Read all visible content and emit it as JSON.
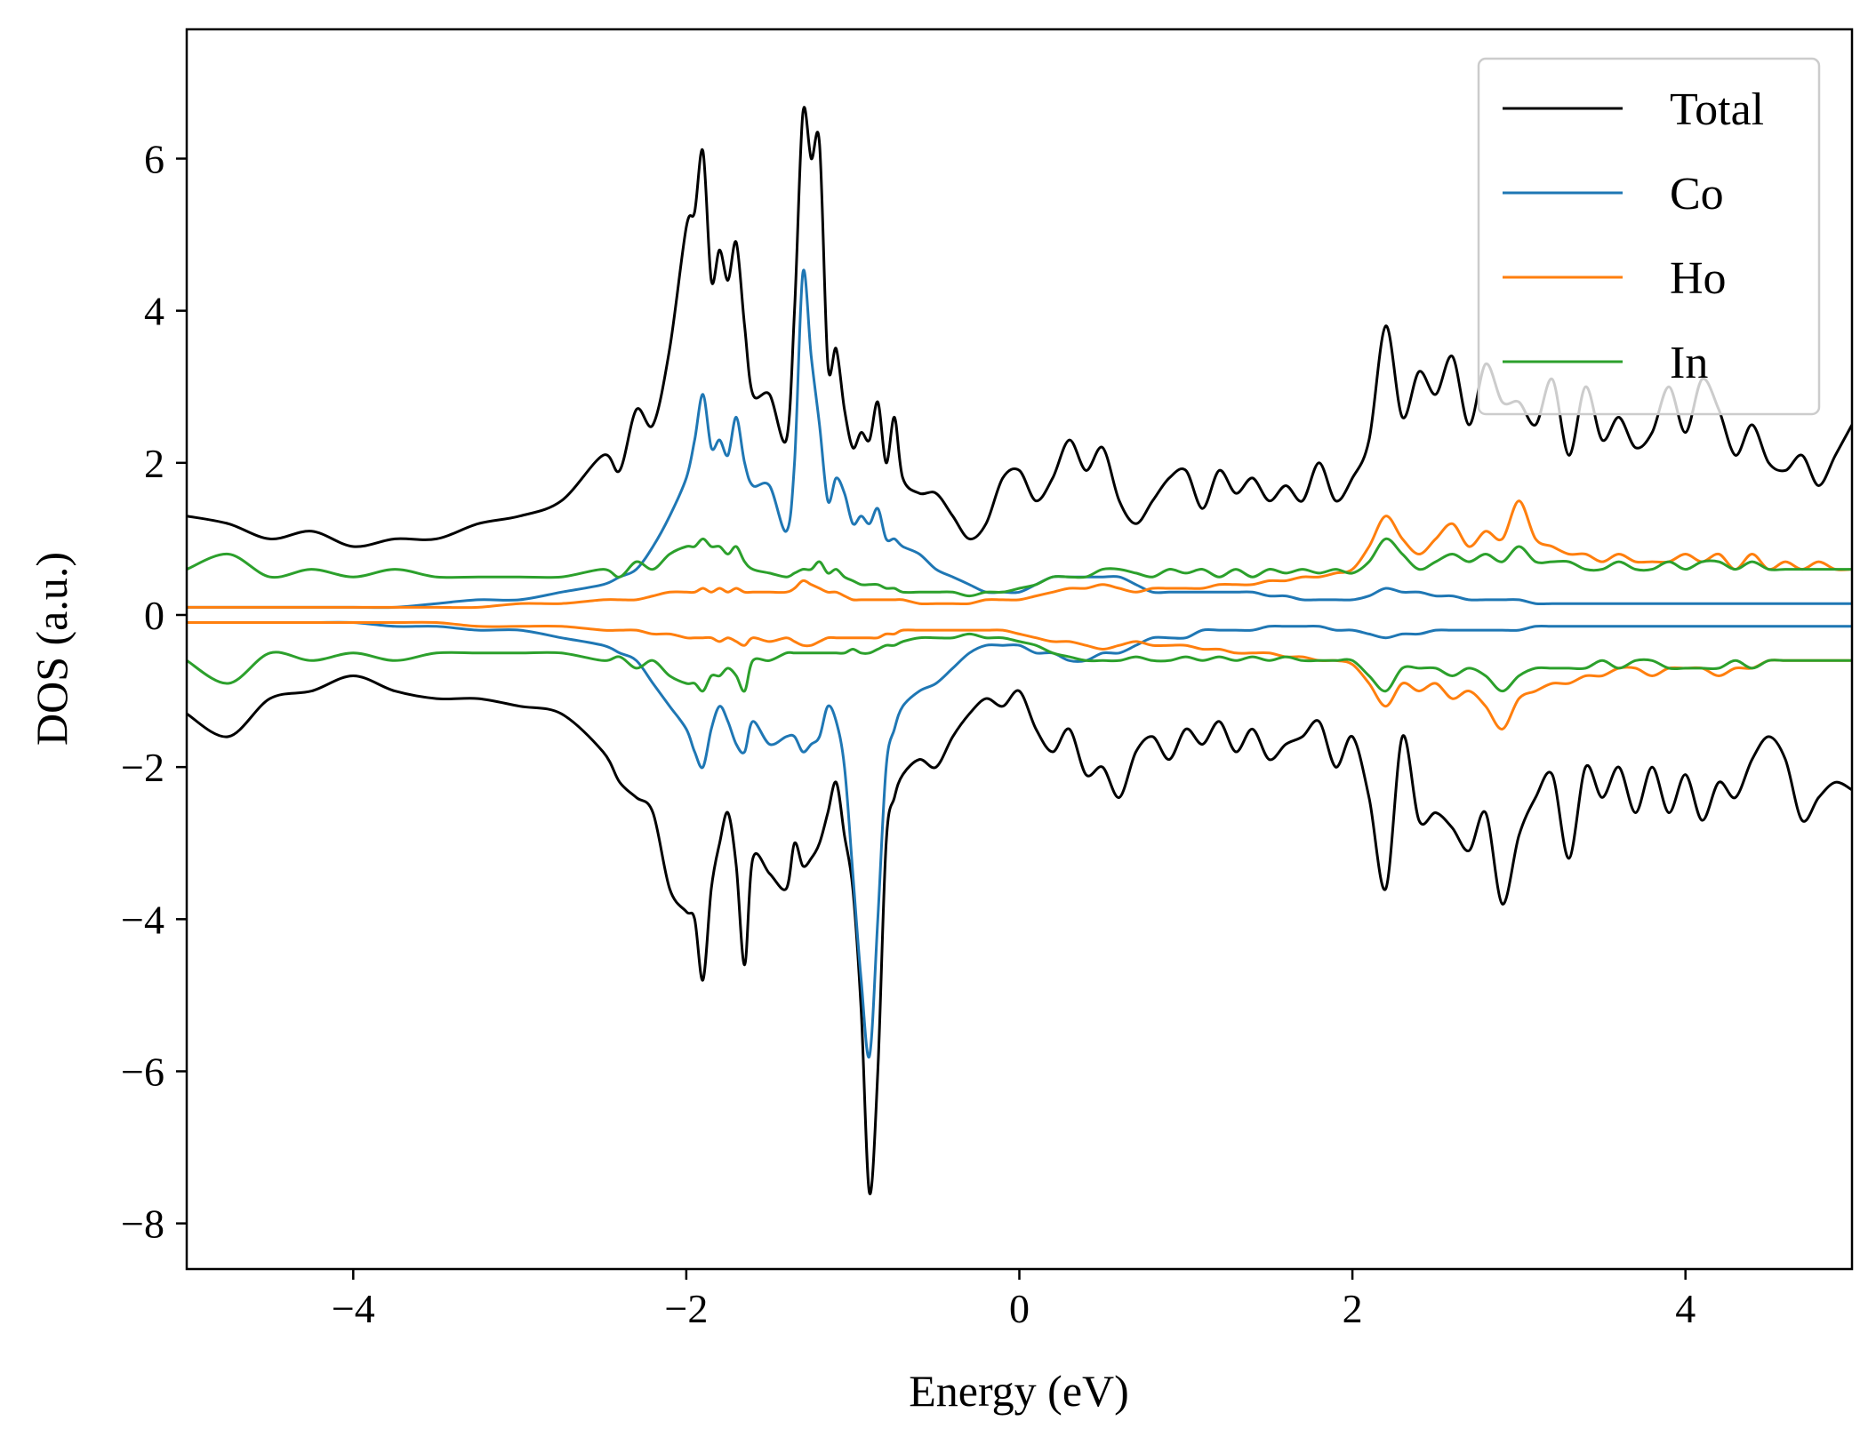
{
  "chart_data": {
    "type": "line",
    "title": "",
    "xlabel": "Energy (eV)",
    "ylabel": "DOS (a.u.)",
    "xlim": [
      -5,
      5
    ],
    "ylim": [
      -8.6,
      7.7
    ],
    "xticks": [
      {
        "value": -4,
        "label": "−4"
      },
      {
        "value": -2,
        "label": "−2"
      },
      {
        "value": 0,
        "label": "0"
      },
      {
        "value": 2,
        "label": "2"
      },
      {
        "value": 4,
        "label": "4"
      }
    ],
    "yticks": [
      {
        "value": -8,
        "label": "−8"
      },
      {
        "value": -6,
        "label": "−6"
      },
      {
        "value": -4,
        "label": "−4"
      },
      {
        "value": -2,
        "label": "−2"
      },
      {
        "value": 0,
        "label": "0"
      },
      {
        "value": 2,
        "label": "2"
      },
      {
        "value": 4,
        "label": "4"
      },
      {
        "value": 6,
        "label": "6"
      }
    ],
    "grid": false,
    "legend_position": "top-right",
    "x": [
      -5.0,
      -4.75,
      -4.5,
      -4.25,
      -4.0,
      -3.75,
      -3.5,
      -3.25,
      -3.0,
      -2.75,
      -2.5,
      -2.4,
      -2.3,
      -2.2,
      -2.1,
      -2.0,
      -1.95,
      -1.9,
      -1.85,
      -1.8,
      -1.75,
      -1.7,
      -1.65,
      -1.6,
      -1.5,
      -1.4,
      -1.35,
      -1.3,
      -1.25,
      -1.2,
      -1.15,
      -1.1,
      -1.05,
      -1.0,
      -0.95,
      -0.9,
      -0.85,
      -0.8,
      -0.75,
      -0.7,
      -0.6,
      -0.5,
      -0.4,
      -0.3,
      -0.2,
      -0.1,
      0.0,
      0.1,
      0.2,
      0.3,
      0.4,
      0.5,
      0.6,
      0.7,
      0.8,
      0.9,
      1.0,
      1.1,
      1.2,
      1.3,
      1.4,
      1.5,
      1.6,
      1.7,
      1.8,
      1.9,
      2.0,
      2.1,
      2.2,
      2.3,
      2.4,
      2.5,
      2.6,
      2.7,
      2.8,
      2.9,
      3.0,
      3.1,
      3.2,
      3.3,
      3.4,
      3.5,
      3.6,
      3.7,
      3.8,
      3.9,
      4.0,
      4.1,
      4.2,
      4.3,
      4.4,
      4.5,
      4.6,
      4.7,
      4.8,
      4.9,
      5.0
    ],
    "series": [
      {
        "name": "Total",
        "color": "#000000",
        "up": [
          1.3,
          1.2,
          1.0,
          1.1,
          0.9,
          1.0,
          1.0,
          1.2,
          1.3,
          1.5,
          2.1,
          1.9,
          2.7,
          2.5,
          3.5,
          5.1,
          5.3,
          6.1,
          4.4,
          4.8,
          4.4,
          4.9,
          3.8,
          2.9,
          2.9,
          2.3,
          4.0,
          6.6,
          6.0,
          6.2,
          3.3,
          3.5,
          2.7,
          2.2,
          2.4,
          2.3,
          2.8,
          2.0,
          2.6,
          1.8,
          1.6,
          1.6,
          1.3,
          1.0,
          1.2,
          1.8,
          1.9,
          1.5,
          1.8,
          2.3,
          1.9,
          2.2,
          1.5,
          1.2,
          1.5,
          1.8,
          1.9,
          1.4,
          1.9,
          1.6,
          1.8,
          1.5,
          1.7,
          1.5,
          2.0,
          1.5,
          1.8,
          2.3,
          3.8,
          2.6,
          3.2,
          2.9,
          3.4,
          2.5,
          3.3,
          2.8,
          2.8,
          2.5,
          3.1,
          2.1,
          3.0,
          2.3,
          2.6,
          2.2,
          2.4,
          3.0,
          2.4,
          3.1,
          2.7,
          2.1,
          2.5,
          2.0,
          1.9,
          2.1,
          1.7,
          2.1,
          2.5
        ],
        "down": [
          -1.3,
          -1.6,
          -1.1,
          -1.0,
          -0.8,
          -1.0,
          -1.1,
          -1.1,
          -1.2,
          -1.3,
          -1.8,
          -2.2,
          -2.4,
          -2.6,
          -3.6,
          -3.9,
          -4.0,
          -4.8,
          -3.6,
          -3.0,
          -2.6,
          -3.3,
          -4.6,
          -3.2,
          -3.4,
          -3.6,
          -3.0,
          -3.3,
          -3.2,
          -3.0,
          -2.6,
          -2.2,
          -2.9,
          -3.6,
          -5.2,
          -7.6,
          -6.0,
          -3.0,
          -2.4,
          -2.1,
          -1.9,
          -2.0,
          -1.6,
          -1.3,
          -1.1,
          -1.2,
          -1.0,
          -1.5,
          -1.8,
          -1.5,
          -2.1,
          -2.0,
          -2.4,
          -1.8,
          -1.6,
          -1.9,
          -1.5,
          -1.7,
          -1.4,
          -1.8,
          -1.5,
          -1.9,
          -1.7,
          -1.6,
          -1.4,
          -2.0,
          -1.6,
          -2.4,
          -3.6,
          -1.6,
          -2.7,
          -2.6,
          -2.8,
          -3.1,
          -2.6,
          -3.8,
          -2.9,
          -2.4,
          -2.1,
          -3.2,
          -2.0,
          -2.4,
          -2.0,
          -2.6,
          -2.0,
          -2.6,
          -2.1,
          -2.7,
          -2.2,
          -2.4,
          -1.9,
          -1.6,
          -1.9,
          -2.7,
          -2.4,
          -2.2,
          -2.3
        ]
      },
      {
        "name": "Co",
        "color": "#1f77b4",
        "up": [
          0.1,
          0.1,
          0.1,
          0.1,
          0.1,
          0.1,
          0.15,
          0.2,
          0.2,
          0.3,
          0.4,
          0.5,
          0.6,
          0.9,
          1.3,
          1.8,
          2.3,
          2.9,
          2.2,
          2.3,
          2.1,
          2.6,
          2.0,
          1.7,
          1.7,
          1.1,
          2.0,
          4.5,
          3.4,
          2.5,
          1.5,
          1.8,
          1.6,
          1.2,
          1.3,
          1.2,
          1.4,
          1.0,
          1.0,
          0.9,
          0.8,
          0.6,
          0.5,
          0.4,
          0.3,
          0.3,
          0.3,
          0.4,
          0.5,
          0.5,
          0.5,
          0.5,
          0.5,
          0.4,
          0.3,
          0.3,
          0.3,
          0.3,
          0.3,
          0.3,
          0.3,
          0.25,
          0.25,
          0.2,
          0.2,
          0.2,
          0.2,
          0.25,
          0.35,
          0.3,
          0.3,
          0.25,
          0.25,
          0.2,
          0.2,
          0.2,
          0.2,
          0.15,
          0.15,
          0.15,
          0.15,
          0.15,
          0.15,
          0.15,
          0.15,
          0.15,
          0.15,
          0.15,
          0.15,
          0.15,
          0.15,
          0.15,
          0.15,
          0.15,
          0.15,
          0.15,
          0.15
        ],
        "down": [
          -0.1,
          -0.1,
          -0.1,
          -0.1,
          -0.1,
          -0.15,
          -0.15,
          -0.2,
          -0.2,
          -0.3,
          -0.4,
          -0.5,
          -0.6,
          -0.9,
          -1.2,
          -1.5,
          -1.8,
          -2.0,
          -1.5,
          -1.2,
          -1.4,
          -1.7,
          -1.8,
          -1.4,
          -1.7,
          -1.6,
          -1.6,
          -1.8,
          -1.7,
          -1.6,
          -1.2,
          -1.4,
          -2.0,
          -3.4,
          -4.8,
          -5.8,
          -4.0,
          -2.0,
          -1.5,
          -1.2,
          -1.0,
          -0.9,
          -0.7,
          -0.5,
          -0.4,
          -0.4,
          -0.4,
          -0.5,
          -0.5,
          -0.6,
          -0.6,
          -0.5,
          -0.5,
          -0.4,
          -0.3,
          -0.3,
          -0.3,
          -0.2,
          -0.2,
          -0.2,
          -0.2,
          -0.15,
          -0.15,
          -0.15,
          -0.15,
          -0.2,
          -0.2,
          -0.25,
          -0.3,
          -0.25,
          -0.25,
          -0.2,
          -0.2,
          -0.2,
          -0.2,
          -0.2,
          -0.2,
          -0.15,
          -0.15,
          -0.15,
          -0.15,
          -0.15,
          -0.15,
          -0.15,
          -0.15,
          -0.15,
          -0.15,
          -0.15,
          -0.15,
          -0.15,
          -0.15,
          -0.15,
          -0.15,
          -0.15,
          -0.15,
          -0.15,
          -0.15
        ]
      },
      {
        "name": "Ho",
        "color": "#ff7f0e",
        "up": [
          0.1,
          0.1,
          0.1,
          0.1,
          0.1,
          0.1,
          0.1,
          0.1,
          0.15,
          0.15,
          0.2,
          0.2,
          0.2,
          0.25,
          0.3,
          0.3,
          0.3,
          0.35,
          0.3,
          0.35,
          0.3,
          0.35,
          0.3,
          0.3,
          0.3,
          0.3,
          0.35,
          0.45,
          0.4,
          0.35,
          0.3,
          0.3,
          0.25,
          0.2,
          0.2,
          0.2,
          0.2,
          0.2,
          0.2,
          0.2,
          0.15,
          0.15,
          0.15,
          0.15,
          0.2,
          0.2,
          0.2,
          0.25,
          0.3,
          0.35,
          0.35,
          0.4,
          0.35,
          0.3,
          0.35,
          0.35,
          0.35,
          0.35,
          0.4,
          0.4,
          0.4,
          0.45,
          0.45,
          0.5,
          0.5,
          0.55,
          0.6,
          0.9,
          1.3,
          1.0,
          0.8,
          1.0,
          1.2,
          0.9,
          1.1,
          1.0,
          1.5,
          1.0,
          0.9,
          0.8,
          0.8,
          0.7,
          0.8,
          0.7,
          0.7,
          0.7,
          0.8,
          0.7,
          0.8,
          0.6,
          0.8,
          0.6,
          0.7,
          0.6,
          0.7,
          0.6,
          0.6
        ],
        "down": [
          -0.1,
          -0.1,
          -0.1,
          -0.1,
          -0.1,
          -0.1,
          -0.1,
          -0.15,
          -0.15,
          -0.15,
          -0.2,
          -0.2,
          -0.2,
          -0.25,
          -0.25,
          -0.3,
          -0.3,
          -0.3,
          -0.3,
          -0.35,
          -0.3,
          -0.35,
          -0.4,
          -0.3,
          -0.35,
          -0.3,
          -0.35,
          -0.4,
          -0.4,
          -0.35,
          -0.3,
          -0.3,
          -0.3,
          -0.3,
          -0.3,
          -0.3,
          -0.3,
          -0.25,
          -0.25,
          -0.2,
          -0.2,
          -0.2,
          -0.2,
          -0.2,
          -0.2,
          -0.2,
          -0.25,
          -0.3,
          -0.35,
          -0.35,
          -0.4,
          -0.45,
          -0.4,
          -0.35,
          -0.4,
          -0.4,
          -0.4,
          -0.45,
          -0.45,
          -0.5,
          -0.5,
          -0.5,
          -0.55,
          -0.55,
          -0.6,
          -0.6,
          -0.65,
          -0.9,
          -1.2,
          -0.9,
          -1.0,
          -0.9,
          -1.1,
          -1.0,
          -1.2,
          -1.5,
          -1.1,
          -1.0,
          -0.9,
          -0.9,
          -0.8,
          -0.8,
          -0.7,
          -0.7,
          -0.8,
          -0.7,
          -0.7,
          -0.7,
          -0.8,
          -0.7,
          -0.7,
          -0.6,
          -0.6,
          -0.6,
          -0.6,
          -0.6,
          -0.6
        ]
      },
      {
        "name": "In",
        "color": "#2ca02c",
        "up": [
          0.6,
          0.8,
          0.5,
          0.6,
          0.5,
          0.6,
          0.5,
          0.5,
          0.5,
          0.5,
          0.6,
          0.5,
          0.7,
          0.6,
          0.8,
          0.9,
          0.9,
          1.0,
          0.9,
          0.9,
          0.8,
          0.9,
          0.7,
          0.6,
          0.55,
          0.5,
          0.55,
          0.6,
          0.6,
          0.7,
          0.55,
          0.6,
          0.5,
          0.45,
          0.4,
          0.4,
          0.4,
          0.35,
          0.35,
          0.3,
          0.3,
          0.3,
          0.3,
          0.25,
          0.3,
          0.3,
          0.35,
          0.4,
          0.5,
          0.5,
          0.5,
          0.6,
          0.6,
          0.55,
          0.5,
          0.6,
          0.55,
          0.6,
          0.5,
          0.6,
          0.5,
          0.6,
          0.55,
          0.6,
          0.55,
          0.6,
          0.55,
          0.7,
          1.0,
          0.8,
          0.6,
          0.7,
          0.8,
          0.7,
          0.8,
          0.7,
          0.9,
          0.7,
          0.7,
          0.7,
          0.6,
          0.6,
          0.7,
          0.6,
          0.6,
          0.7,
          0.6,
          0.7,
          0.7,
          0.6,
          0.7,
          0.6,
          0.6,
          0.6,
          0.6,
          0.6,
          0.6
        ],
        "down": [
          -0.6,
          -0.9,
          -0.5,
          -0.6,
          -0.5,
          -0.6,
          -0.5,
          -0.5,
          -0.5,
          -0.5,
          -0.6,
          -0.55,
          -0.7,
          -0.6,
          -0.8,
          -0.9,
          -0.9,
          -1.0,
          -0.8,
          -0.8,
          -0.7,
          -0.8,
          -1.0,
          -0.6,
          -0.6,
          -0.5,
          -0.5,
          -0.5,
          -0.5,
          -0.5,
          -0.5,
          -0.5,
          -0.5,
          -0.45,
          -0.5,
          -0.5,
          -0.45,
          -0.4,
          -0.4,
          -0.35,
          -0.3,
          -0.3,
          -0.3,
          -0.25,
          -0.3,
          -0.3,
          -0.35,
          -0.4,
          -0.5,
          -0.55,
          -0.6,
          -0.6,
          -0.6,
          -0.55,
          -0.6,
          -0.6,
          -0.55,
          -0.6,
          -0.55,
          -0.6,
          -0.55,
          -0.6,
          -0.55,
          -0.6,
          -0.6,
          -0.6,
          -0.6,
          -0.8,
          -1.0,
          -0.7,
          -0.7,
          -0.7,
          -0.8,
          -0.7,
          -0.8,
          -1.0,
          -0.8,
          -0.7,
          -0.7,
          -0.7,
          -0.7,
          -0.6,
          -0.7,
          -0.6,
          -0.6,
          -0.7,
          -0.7,
          -0.7,
          -0.7,
          -0.6,
          -0.7,
          -0.6,
          -0.6,
          -0.6,
          -0.6,
          -0.6,
          -0.6
        ]
      }
    ]
  }
}
